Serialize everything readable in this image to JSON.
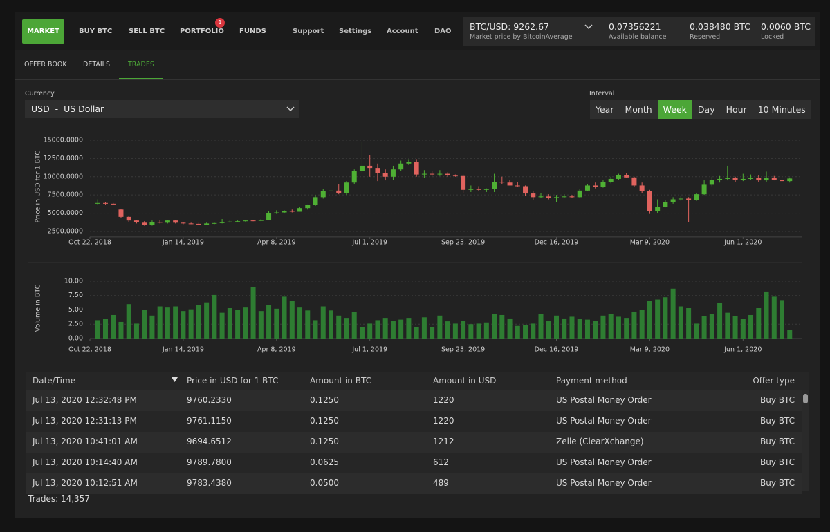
{
  "nav": {
    "primary": [
      "MARKET",
      "BUY BTC",
      "SELL BTC",
      "PORTFOLIO",
      "FUNDS"
    ],
    "portfolio_badge": "1",
    "secondary": [
      "Support",
      "Settings",
      "Account",
      "DAO"
    ]
  },
  "market_price": {
    "pair": "BTC/USD: 9262.67",
    "source": "Market price by BitcoinAverage"
  },
  "balances": [
    {
      "value": "0.07356221",
      "label": "Available balance"
    },
    {
      "value": "0.038480 BTC",
      "label": "Reserved"
    },
    {
      "value": "0.0060 BTC",
      "label": "Locked"
    }
  ],
  "tabs": [
    "OFFER BOOK",
    "DETAILS",
    "TRADES"
  ],
  "currency": {
    "label": "Currency",
    "selected": "USD  -  US Dollar"
  },
  "interval": {
    "label": "Interval",
    "options": [
      "Year",
      "Month",
      "Week",
      "Day",
      "Hour",
      "10 Minutes"
    ]
  },
  "chart_data": [
    {
      "type": "candlestick",
      "y_label": "Price in USD for 1 BTC",
      "up_color": "#4fb034",
      "down_color": "#e0635e",
      "grid": true,
      "x": [
        "2018-10-29",
        "2018-11-05",
        "2018-11-12",
        "2018-11-19",
        "2018-11-26",
        "2018-12-03",
        "2018-12-10",
        "2018-12-17",
        "2018-12-24",
        "2018-12-31",
        "2019-01-07",
        "2019-01-14",
        "2019-01-21",
        "2019-01-28",
        "2019-02-04",
        "2019-02-11",
        "2019-02-18",
        "2019-02-25",
        "2019-03-04",
        "2019-03-11",
        "2019-03-18",
        "2019-03-25",
        "2019-04-01",
        "2019-04-08",
        "2019-04-15",
        "2019-04-22",
        "2019-04-29",
        "2019-05-06",
        "2019-05-13",
        "2019-05-20",
        "2019-05-27",
        "2019-06-03",
        "2019-06-10",
        "2019-06-17",
        "2019-06-24",
        "2019-07-01",
        "2019-07-08",
        "2019-07-15",
        "2019-07-22",
        "2019-07-29",
        "2019-08-05",
        "2019-08-12",
        "2019-08-19",
        "2019-08-26",
        "2019-09-02",
        "2019-09-09",
        "2019-09-16",
        "2019-09-23",
        "2019-09-30",
        "2019-10-07",
        "2019-10-14",
        "2019-10-21",
        "2019-10-28",
        "2019-11-04",
        "2019-11-11",
        "2019-11-18",
        "2019-11-25",
        "2019-12-02",
        "2019-12-09",
        "2019-12-16",
        "2019-12-23",
        "2019-12-30",
        "2020-01-06",
        "2020-01-13",
        "2020-01-20",
        "2020-01-27",
        "2020-02-03",
        "2020-02-10",
        "2020-02-17",
        "2020-02-24",
        "2020-03-02",
        "2020-03-09",
        "2020-03-16",
        "2020-03-23",
        "2020-03-30",
        "2020-04-06",
        "2020-04-13",
        "2020-04-20",
        "2020-04-27",
        "2020-05-04",
        "2020-05-11",
        "2020-05-18",
        "2020-05-25",
        "2020-06-01",
        "2020-06-08",
        "2020-06-15",
        "2020-06-22",
        "2020-06-29",
        "2020-07-06",
        "2020-07-13"
      ],
      "open": [
        6300,
        6400,
        6300,
        5500,
        4500,
        4000,
        3700,
        3400,
        3800,
        3700,
        4000,
        3700,
        3600,
        3550,
        3400,
        3600,
        3650,
        3800,
        3850,
        3900,
        4000,
        3950,
        4100,
        5000,
        5100,
        5300,
        5200,
        5700,
        6100,
        7200,
        8000,
        8100,
        7800,
        9200,
        10800,
        11500,
        11200,
        10500,
        10000,
        11000,
        11800,
        12000,
        10300,
        10400,
        10300,
        10400,
        10200,
        10100,
        8200,
        8300,
        8200,
        8300,
        9300,
        9200,
        8800,
        8700,
        7700,
        7200,
        7300,
        7100,
        7200,
        7300,
        7200,
        8100,
        8800,
        8600,
        9300,
        9700,
        10200,
        9900,
        8800,
        8000,
        5300,
        5900,
        6500,
        6900,
        7000,
        6800,
        7600,
        8900,
        9600,
        9700,
        9800,
        9600,
        9700,
        9800,
        9500,
        9800,
        9600,
        9400
      ],
      "high": [
        6900,
        6500,
        6400,
        5600,
        4600,
        4100,
        3900,
        4000,
        4100,
        4100,
        4100,
        3800,
        3700,
        3700,
        3700,
        3700,
        4200,
        4000,
        4000,
        4100,
        4100,
        4200,
        5300,
        5400,
        5400,
        5500,
        5800,
        6200,
        7500,
        8300,
        8300,
        9000,
        9400,
        11000,
        14800,
        13000,
        11800,
        11000,
        11500,
        12200,
        12400,
        12400,
        10900,
        10800,
        10900,
        10600,
        10300,
        10300,
        8800,
        8700,
        8400,
        10400,
        10000,
        9600,
        9300,
        8800,
        8000,
        7800,
        7600,
        7500,
        7600,
        7500,
        8300,
        9000,
        9200,
        9500,
        10000,
        10400,
        10500,
        10000,
        9200,
        8200,
        6900,
        6800,
        7200,
        7400,
        7200,
        7800,
        9500,
        10000,
        10100,
        11500,
        10000,
        10400,
        10300,
        10200,
        10700,
        10100,
        10400,
        9900
      ],
      "low": [
        6200,
        6200,
        6100,
        4400,
        3800,
        3600,
        3300,
        3300,
        3600,
        3600,
        3600,
        3500,
        3500,
        3400,
        3400,
        3500,
        3600,
        3700,
        3800,
        3850,
        3900,
        3900,
        4100,
        4900,
        5000,
        5100,
        5200,
        5500,
        6000,
        7000,
        7800,
        7600,
        7500,
        9000,
        10500,
        10000,
        9400,
        9500,
        9600,
        10800,
        11600,
        10000,
        9800,
        10100,
        10100,
        10000,
        10000,
        7800,
        7900,
        8000,
        7900,
        7900,
        9000,
        8800,
        8600,
        7400,
        6800,
        7100,
        6900,
        6500,
        7100,
        7100,
        7100,
        8000,
        8400,
        8500,
        9100,
        9600,
        9800,
        8600,
        7800,
        4900,
        5000,
        5800,
        6300,
        6700,
        3800,
        6700,
        7500,
        8700,
        9200,
        9500,
        9300,
        9400,
        9600,
        9300,
        9300,
        9500,
        9200,
        9200
      ],
      "close": [
        6400,
        6300,
        6200,
        4500,
        4000,
        3800,
        3400,
        3800,
        3700,
        4000,
        3700,
        3600,
        3550,
        3450,
        3600,
        3650,
        3800,
        3850,
        3900,
        4000,
        3950,
        4100,
        5000,
        5100,
        5300,
        5200,
        5700,
        6100,
        7200,
        8000,
        8100,
        7800,
        9200,
        10800,
        11500,
        11200,
        10500,
        10000,
        11000,
        11800,
        12000,
        10300,
        10400,
        10300,
        10400,
        10200,
        10100,
        8200,
        8300,
        8200,
        8300,
        9300,
        9200,
        8800,
        8700,
        7700,
        7200,
        7300,
        7100,
        7200,
        7300,
        7200,
        8100,
        8800,
        8600,
        9300,
        9700,
        10200,
        9900,
        8800,
        8000,
        5300,
        5900,
        6500,
        6900,
        7000,
        6800,
        7600,
        8900,
        9600,
        9700,
        9800,
        9600,
        9700,
        9800,
        9500,
        9800,
        9600,
        9400,
        9750
      ],
      "ylim": [
        1750,
        15500
      ],
      "yticks": [
        {
          "value": 2500,
          "label": "2500.0000"
        },
        {
          "value": 5000,
          "label": "5000.0000"
        },
        {
          "value": 7500,
          "label": "7500.0000"
        },
        {
          "value": 10000,
          "label": "10000.0000"
        },
        {
          "value": 12500,
          "label": "12500.0000"
        },
        {
          "value": 15000,
          "label": "15000.0000"
        }
      ],
      "xlim": [
        "2018-10-22",
        "2020-07-20"
      ],
      "xticks": [
        {
          "value": "2018-10-22",
          "label": "Oct 22, 2018"
        },
        {
          "value": "2019-01-14",
          "label": "Jan 14, 2019"
        },
        {
          "value": "2019-04-08",
          "label": "Apr 8, 2019"
        },
        {
          "value": "2019-07-01",
          "label": "Jul 1, 2019"
        },
        {
          "value": "2019-09-23",
          "label": "Sep 23, 2019"
        },
        {
          "value": "2019-12-16",
          "label": "Dec 16, 2019"
        },
        {
          "value": "2020-03-09",
          "label": "Mar 9, 2020"
        },
        {
          "value": "2020-06-01",
          "label": "Jun 1, 2020"
        }
      ]
    },
    {
      "type": "bar",
      "y_label": "Volume in BTC",
      "color": "#2e7d32",
      "grid": true,
      "x": [
        "2018-10-29",
        "2018-11-05",
        "2018-11-12",
        "2018-11-19",
        "2018-11-26",
        "2018-12-03",
        "2018-12-10",
        "2018-12-17",
        "2018-12-24",
        "2018-12-31",
        "2019-01-07",
        "2019-01-14",
        "2019-01-21",
        "2019-01-28",
        "2019-02-04",
        "2019-02-11",
        "2019-02-18",
        "2019-02-25",
        "2019-03-04",
        "2019-03-11",
        "2019-03-18",
        "2019-03-25",
        "2019-04-01",
        "2019-04-08",
        "2019-04-15",
        "2019-04-22",
        "2019-04-29",
        "2019-05-06",
        "2019-05-13",
        "2019-05-20",
        "2019-05-27",
        "2019-06-03",
        "2019-06-10",
        "2019-06-17",
        "2019-06-24",
        "2019-07-01",
        "2019-07-08",
        "2019-07-15",
        "2019-07-22",
        "2019-07-29",
        "2019-08-05",
        "2019-08-12",
        "2019-08-19",
        "2019-08-26",
        "2019-09-02",
        "2019-09-09",
        "2019-09-16",
        "2019-09-23",
        "2019-09-30",
        "2019-10-07",
        "2019-10-14",
        "2019-10-21",
        "2019-10-28",
        "2019-11-04",
        "2019-11-11",
        "2019-11-18",
        "2019-11-25",
        "2019-12-02",
        "2019-12-09",
        "2019-12-16",
        "2019-12-23",
        "2019-12-30",
        "2020-01-06",
        "2020-01-13",
        "2020-01-20",
        "2020-01-27",
        "2020-02-03",
        "2020-02-10",
        "2020-02-17",
        "2020-02-24",
        "2020-03-02",
        "2020-03-09",
        "2020-03-16",
        "2020-03-23",
        "2020-03-30",
        "2020-04-06",
        "2020-04-13",
        "2020-04-20",
        "2020-04-27",
        "2020-05-04",
        "2020-05-11",
        "2020-05-18",
        "2020-05-25",
        "2020-06-01",
        "2020-06-08",
        "2020-06-15",
        "2020-06-22",
        "2020-06-29",
        "2020-07-06",
        "2020-07-13"
      ],
      "values": [
        3.2,
        3.4,
        4.1,
        2.9,
        6.0,
        2.6,
        5.0,
        4.0,
        5.6,
        5.4,
        5.6,
        4.8,
        5.1,
        5.8,
        6.3,
        7.6,
        4.5,
        5.3,
        5.0,
        5.4,
        9.0,
        4.8,
        5.8,
        5.2,
        7.3,
        6.6,
        5.4,
        4.9,
        3.2,
        5.6,
        4.9,
        4.0,
        3.6,
        4.6,
        2.0,
        2.6,
        3.2,
        3.6,
        3.1,
        3.3,
        3.6,
        2.0,
        3.7,
        2.0,
        4.0,
        3.0,
        2.6,
        3.1,
        2.5,
        2.6,
        2.8,
        4.3,
        4.1,
        3.5,
        2.2,
        2.3,
        2.6,
        4.3,
        3.1,
        4.0,
        3.5,
        3.8,
        3.4,
        3.3,
        3.1,
        4.0,
        4.3,
        3.8,
        3.6,
        4.7,
        5.0,
        6.6,
        6.8,
        7.2,
        8.7,
        5.6,
        5.3,
        2.6,
        3.9,
        4.3,
        6.2,
        4.5,
        3.9,
        3.4,
        4.1,
        5.3,
        8.2,
        7.3,
        6.7,
        1.5
      ],
      "ylim": [
        0,
        10.6
      ],
      "yticks": [
        {
          "value": 0,
          "label": "0.00"
        },
        {
          "value": 2.5,
          "label": "2.50"
        },
        {
          "value": 5,
          "label": "5.00"
        },
        {
          "value": 7.5,
          "label": "7.50"
        },
        {
          "value": 10,
          "label": "10.00"
        }
      ],
      "xlim": [
        "2018-10-22",
        "2020-07-20"
      ],
      "xticks": [
        {
          "value": "2018-10-22",
          "label": "Oct 22, 2018"
        },
        {
          "value": "2019-01-14",
          "label": "Jan 14, 2019"
        },
        {
          "value": "2019-04-08",
          "label": "Apr 8, 2019"
        },
        {
          "value": "2019-07-01",
          "label": "Jul 1, 2019"
        },
        {
          "value": "2019-09-23",
          "label": "Sep 23, 2019"
        },
        {
          "value": "2019-12-16",
          "label": "Dec 16, 2019"
        },
        {
          "value": "2020-03-09",
          "label": "Mar 9, 2020"
        },
        {
          "value": "2020-06-01",
          "label": "Jun 1, 2020"
        }
      ]
    }
  ],
  "table": {
    "columns": [
      "Date/Time",
      "Price in USD for 1 BTC",
      "Amount in BTC",
      "Amount in USD",
      "Payment method",
      "Offer type"
    ],
    "rows": [
      [
        "Jul 13, 2020 12:32:48 PM",
        "9760.2330",
        "0.1250",
        "1220",
        "US Postal Money Order",
        "Buy BTC"
      ],
      [
        "Jul 13, 2020 12:31:13 PM",
        "9761.1150",
        "0.1250",
        "1220",
        "US Postal Money Order",
        "Buy BTC"
      ],
      [
        "Jul 13, 2020 10:41:01 AM",
        "9694.6512",
        "0.1250",
        "1212",
        "Zelle (ClearXchange)",
        "Buy BTC"
      ],
      [
        "Jul 13, 2020 10:14:40 AM",
        "9789.7800",
        "0.0625",
        "612",
        "US Postal Money Order",
        "Buy BTC"
      ],
      [
        "Jul 13, 2020 10:12:51 AM",
        "9783.4380",
        "0.0500",
        "489",
        "US Postal Money Order",
        "Buy BTC"
      ]
    ]
  },
  "trades_count": "Trades: 14,357"
}
